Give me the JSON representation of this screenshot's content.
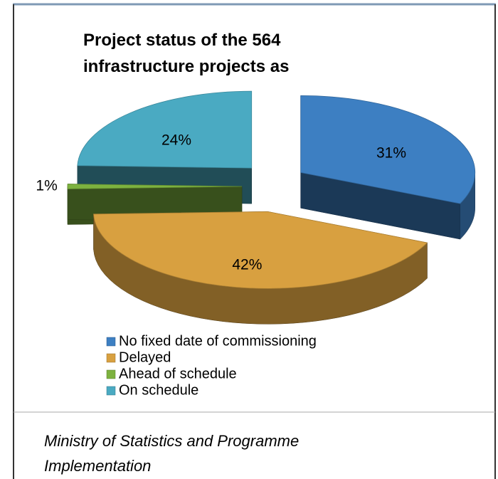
{
  "chart_data": {
    "type": "pie",
    "title": "Project status of the 564 infrastructure projects as",
    "categories": [
      "No fixed date of commissioning",
      "Delayed",
      "Ahead of schedule",
      "On schedule"
    ],
    "values": [
      31,
      42,
      1,
      24
    ],
    "value_labels": [
      "31%",
      "42%",
      "1%",
      "24%"
    ],
    "colors": [
      "#3d7fc2",
      "#d8a040",
      "#7db23f",
      "#4aaac2"
    ],
    "legend": "bottom"
  },
  "source": "Ministry of Statistics and Programme Implementation"
}
